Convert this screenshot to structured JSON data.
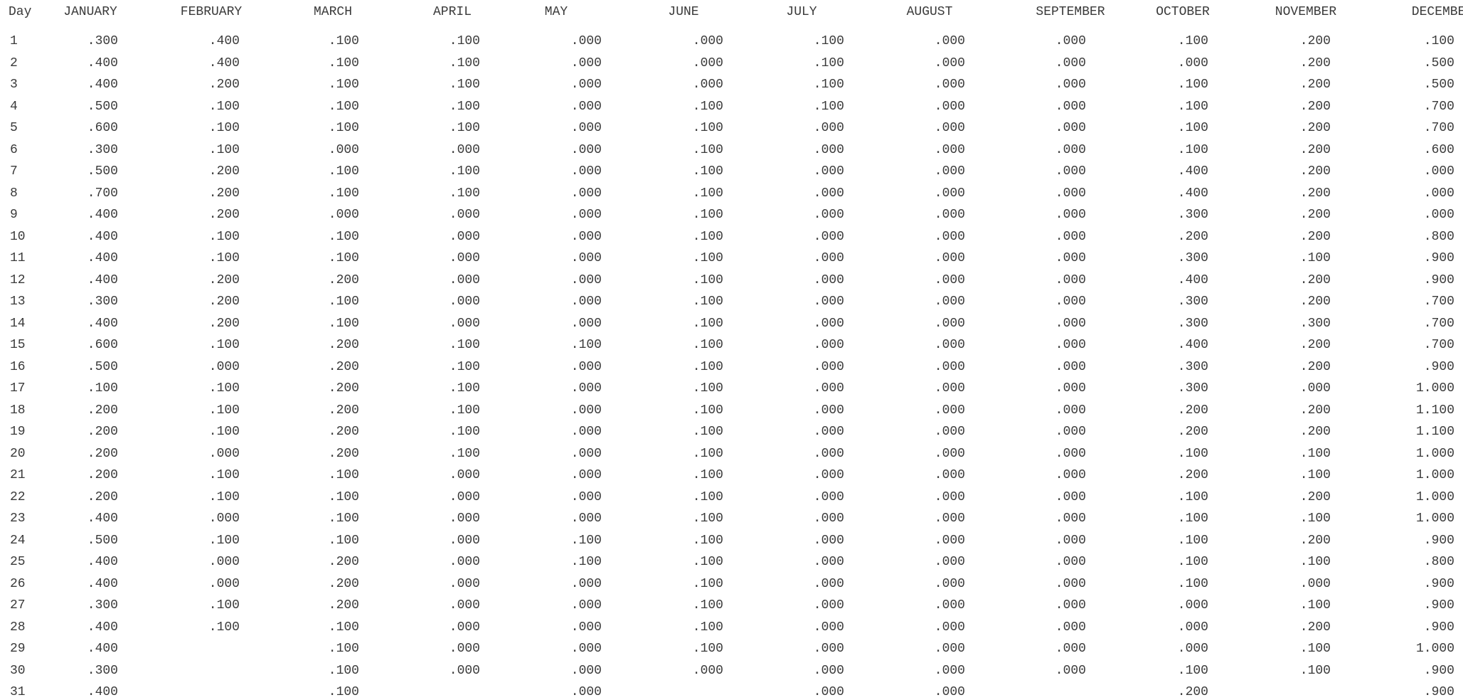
{
  "table": {
    "day_header": "Day",
    "months": [
      "JANUARY",
      "FEBRUARY",
      "MARCH",
      "APRIL",
      "MAY",
      "JUNE",
      "JULY",
      "AUGUST",
      "SEPTEMBER",
      "OCTOBER",
      "NOVEMBER",
      "DECEMBER"
    ],
    "rows": [
      {
        "day": "1",
        "values": [
          ".300",
          ".400",
          ".100",
          ".100",
          ".000",
          ".000",
          ".100",
          ".000",
          ".000",
          ".100",
          ".200",
          ".100"
        ]
      },
      {
        "day": "2",
        "values": [
          ".400",
          ".400",
          ".100",
          ".100",
          ".000",
          ".000",
          ".100",
          ".000",
          ".000",
          ".000",
          ".200",
          ".500"
        ]
      },
      {
        "day": "3",
        "values": [
          ".400",
          ".200",
          ".100",
          ".100",
          ".000",
          ".000",
          ".100",
          ".000",
          ".000",
          ".100",
          ".200",
          ".500"
        ]
      },
      {
        "day": "4",
        "values": [
          ".500",
          ".100",
          ".100",
          ".100",
          ".000",
          ".100",
          ".100",
          ".000",
          ".000",
          ".100",
          ".200",
          ".700"
        ]
      },
      {
        "day": "5",
        "values": [
          ".600",
          ".100",
          ".100",
          ".100",
          ".000",
          ".100",
          ".000",
          ".000",
          ".000",
          ".100",
          ".200",
          ".700"
        ]
      },
      {
        "day": "6",
        "values": [
          ".300",
          ".100",
          ".000",
          ".000",
          ".000",
          ".100",
          ".000",
          ".000",
          ".000",
          ".100",
          ".200",
          ".600"
        ]
      },
      {
        "day": "7",
        "values": [
          ".500",
          ".200",
          ".100",
          ".100",
          ".000",
          ".100",
          ".000",
          ".000",
          ".000",
          ".400",
          ".200",
          ".000"
        ]
      },
      {
        "day": "8",
        "values": [
          ".700",
          ".200",
          ".100",
          ".100",
          ".000",
          ".100",
          ".000",
          ".000",
          ".000",
          ".400",
          ".200",
          ".000"
        ]
      },
      {
        "day": "9",
        "values": [
          ".400",
          ".200",
          ".000",
          ".000",
          ".000",
          ".100",
          ".000",
          ".000",
          ".000",
          ".300",
          ".200",
          ".000"
        ]
      },
      {
        "day": "10",
        "values": [
          ".400",
          ".100",
          ".100",
          ".000",
          ".000",
          ".100",
          ".000",
          ".000",
          ".000",
          ".200",
          ".200",
          ".800"
        ]
      },
      {
        "day": "11",
        "values": [
          ".400",
          ".100",
          ".100",
          ".000",
          ".000",
          ".100",
          ".000",
          ".000",
          ".000",
          ".300",
          ".100",
          ".900"
        ]
      },
      {
        "day": "12",
        "values": [
          ".400",
          ".200",
          ".200",
          ".000",
          ".000",
          ".100",
          ".000",
          ".000",
          ".000",
          ".400",
          ".200",
          ".900"
        ]
      },
      {
        "day": "13",
        "values": [
          ".300",
          ".200",
          ".100",
          ".000",
          ".000",
          ".100",
          ".000",
          ".000",
          ".000",
          ".300",
          ".200",
          ".700"
        ]
      },
      {
        "day": "14",
        "values": [
          ".400",
          ".200",
          ".100",
          ".000",
          ".000",
          ".100",
          ".000",
          ".000",
          ".000",
          ".300",
          ".300",
          ".700"
        ]
      },
      {
        "day": "15",
        "values": [
          ".600",
          ".100",
          ".200",
          ".100",
          ".100",
          ".100",
          ".000",
          ".000",
          ".000",
          ".400",
          ".200",
          ".700"
        ]
      },
      {
        "day": "16",
        "values": [
          ".500",
          ".000",
          ".200",
          ".100",
          ".000",
          ".100",
          ".000",
          ".000",
          ".000",
          ".300",
          ".200",
          ".900"
        ]
      },
      {
        "day": "17",
        "values": [
          ".100",
          ".100",
          ".200",
          ".100",
          ".000",
          ".100",
          ".000",
          ".000",
          ".000",
          ".300",
          ".000",
          "1.000"
        ]
      },
      {
        "day": "18",
        "values": [
          ".200",
          ".100",
          ".200",
          ".100",
          ".000",
          ".100",
          ".000",
          ".000",
          ".000",
          ".200",
          ".200",
          "1.100"
        ]
      },
      {
        "day": "19",
        "values": [
          ".200",
          ".100",
          ".200",
          ".100",
          ".000",
          ".100",
          ".000",
          ".000",
          ".000",
          ".200",
          ".200",
          "1.100"
        ]
      },
      {
        "day": "20",
        "values": [
          ".200",
          ".000",
          ".200",
          ".100",
          ".000",
          ".100",
          ".000",
          ".000",
          ".000",
          ".100",
          ".100",
          "1.000"
        ]
      },
      {
        "day": "21",
        "values": [
          ".200",
          ".100",
          ".100",
          ".000",
          ".000",
          ".100",
          ".000",
          ".000",
          ".000",
          ".200",
          ".100",
          "1.000"
        ]
      },
      {
        "day": "22",
        "values": [
          ".200",
          ".100",
          ".100",
          ".000",
          ".000",
          ".100",
          ".000",
          ".000",
          ".000",
          ".100",
          ".200",
          "1.000"
        ]
      },
      {
        "day": "23",
        "values": [
          ".400",
          ".000",
          ".100",
          ".000",
          ".000",
          ".100",
          ".000",
          ".000",
          ".000",
          ".100",
          ".100",
          "1.000"
        ]
      },
      {
        "day": "24",
        "values": [
          ".500",
          ".100",
          ".100",
          ".000",
          ".100",
          ".100",
          ".000",
          ".000",
          ".000",
          ".100",
          ".200",
          ".900"
        ]
      },
      {
        "day": "25",
        "values": [
          ".400",
          ".000",
          ".200",
          ".000",
          ".100",
          ".100",
          ".000",
          ".000",
          ".000",
          ".100",
          ".100",
          ".800"
        ]
      },
      {
        "day": "26",
        "values": [
          ".400",
          ".000",
          ".200",
          ".000",
          ".000",
          ".100",
          ".000",
          ".000",
          ".000",
          ".100",
          ".000",
          ".900"
        ]
      },
      {
        "day": "27",
        "values": [
          ".300",
          ".100",
          ".200",
          ".000",
          ".000",
          ".100",
          ".000",
          ".000",
          ".000",
          ".000",
          ".100",
          ".900"
        ]
      },
      {
        "day": "28",
        "values": [
          ".400",
          ".100",
          ".100",
          ".000",
          ".000",
          ".100",
          ".000",
          ".000",
          ".000",
          ".000",
          ".200",
          ".900"
        ]
      },
      {
        "day": "29",
        "values": [
          ".400",
          "",
          ".100",
          ".000",
          ".000",
          ".100",
          ".000",
          ".000",
          ".000",
          ".000",
          ".100",
          "1.000"
        ]
      },
      {
        "day": "30",
        "values": [
          ".300",
          "",
          ".100",
          ".000",
          ".000",
          ".000",
          ".000",
          ".000",
          ".000",
          ".100",
          ".100",
          ".900"
        ]
      },
      {
        "day": "31",
        "values": [
          ".400",
          "",
          ".100",
          "",
          ".000",
          "",
          ".000",
          ".000",
          "",
          ".200",
          "",
          ".900"
        ]
      }
    ]
  }
}
